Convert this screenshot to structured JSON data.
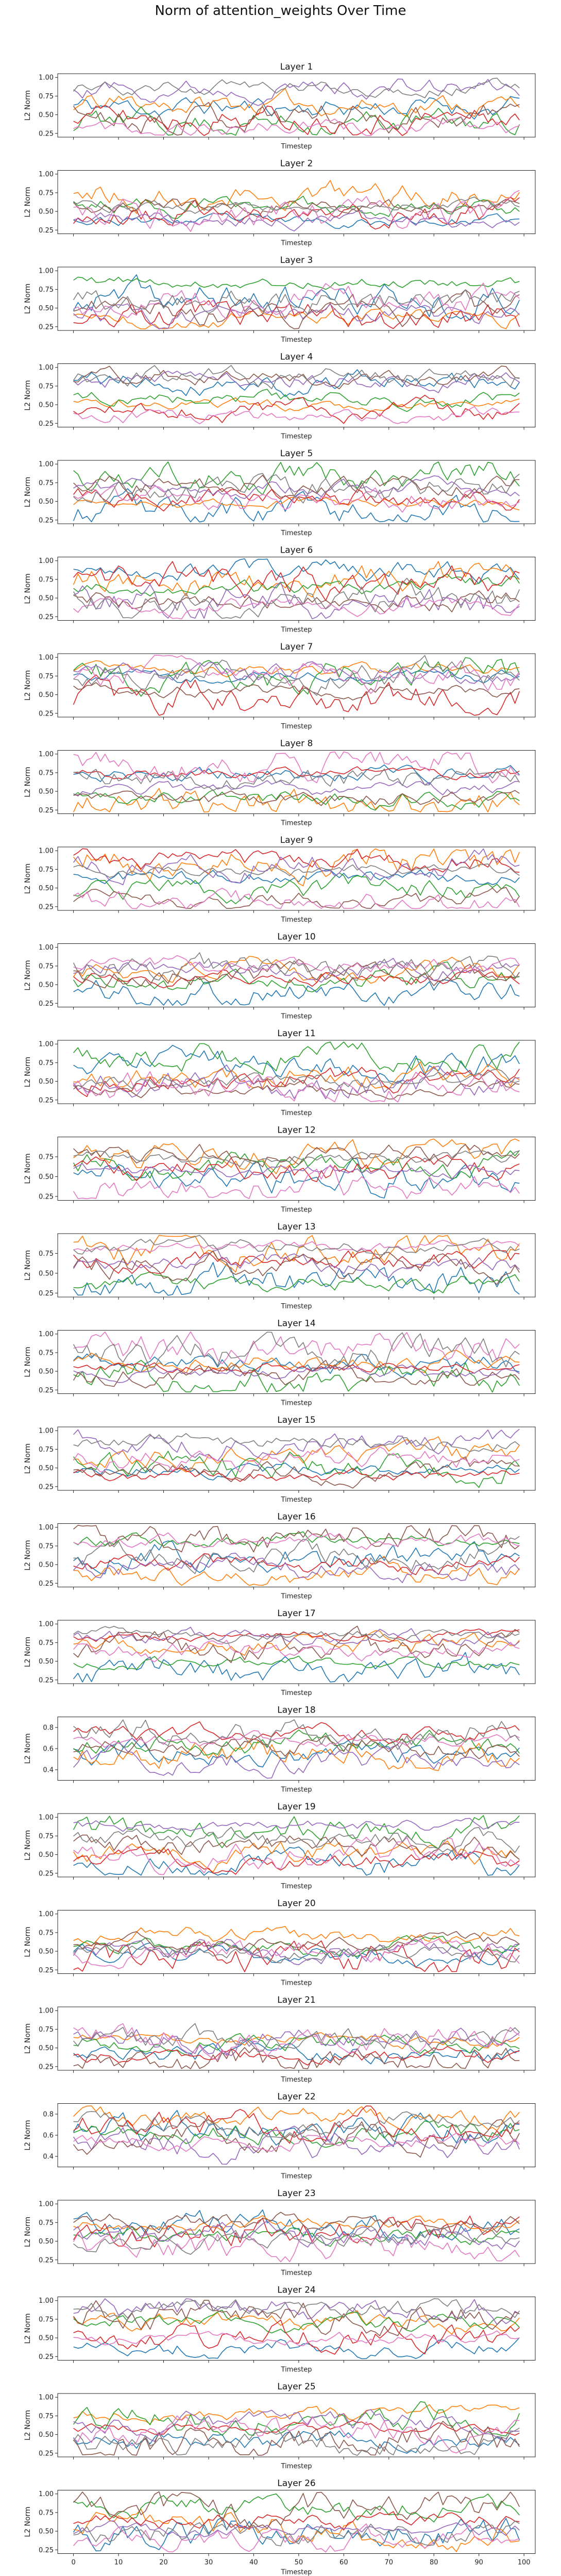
{
  "figure": {
    "suptitle": "Norm of attention_weights Over Time",
    "xlabel": "Timestep",
    "ylabel": "L2 Norm"
  },
  "chart_data": {
    "type": "line",
    "title": "Norm of attention_weights Over Time",
    "x": {
      "start": 0,
      "end": 99,
      "step": 1
    },
    "xlim": [
      -3.5,
      102.5
    ],
    "xticks": [
      0,
      10,
      20,
      30,
      40,
      50,
      60,
      70,
      80,
      90,
      100
    ],
    "series_colors": [
      "#1f77b4",
      "#ff7f0e",
      "#2ca02c",
      "#d62728",
      "#9467bd",
      "#8c564b",
      "#e377c2",
      "#7f7f7f"
    ],
    "grid": false,
    "legend": "none",
    "note_values": "each layer has 8 series of 100 values; y ranges approximated from the axes",
    "layers": [
      {
        "title": "Layer 1",
        "ylim": [
          0.2,
          1.05
        ],
        "yticks": [
          0.25,
          0.5,
          0.75,
          1.0
        ],
        "tick_labels": [
          "0.25",
          "0.50",
          "0.75",
          "1.00"
        ],
        "seed": 11
      },
      {
        "title": "Layer 2",
        "ylim": [
          0.2,
          1.05
        ],
        "yticks": [
          0.25,
          0.5,
          0.75,
          1.0
        ],
        "tick_labels": [
          "0.25",
          "0.50",
          "0.75",
          "1.00"
        ],
        "seed": 23
      },
      {
        "title": "Layer 3",
        "ylim": [
          0.2,
          1.05
        ],
        "yticks": [
          0.25,
          0.5,
          0.75,
          1.0
        ],
        "tick_labels": [
          "0.25",
          "0.50",
          "0.75",
          "1.00"
        ],
        "seed": 37
      },
      {
        "title": "Layer 4",
        "ylim": [
          0.2,
          1.05
        ],
        "yticks": [
          0.25,
          0.5,
          0.75,
          1.0
        ],
        "tick_labels": [
          "0.25",
          "0.50",
          "0.75",
          "1.00"
        ],
        "seed": 41
      },
      {
        "title": "Layer 5",
        "ylim": [
          0.2,
          1.05
        ],
        "yticks": [
          0.25,
          0.5,
          0.75,
          1.0
        ],
        "tick_labels": [
          "0.25",
          "0.50",
          "0.75",
          "1.00"
        ],
        "seed": 53
      },
      {
        "title": "Layer 6",
        "ylim": [
          0.2,
          1.05
        ],
        "yticks": [
          0.25,
          0.5,
          0.75,
          1.0
        ],
        "tick_labels": [
          "0.25",
          "0.50",
          "0.75",
          "1.00"
        ],
        "seed": 67
      },
      {
        "title": "Layer 7",
        "ylim": [
          0.2,
          1.05
        ],
        "yticks": [
          0.25,
          0.5,
          0.75,
          1.0
        ],
        "tick_labels": [
          "0.25",
          "0.50",
          "0.75",
          "1.00"
        ],
        "seed": 71
      },
      {
        "title": "Layer 8",
        "ylim": [
          0.2,
          1.05
        ],
        "yticks": [
          0.25,
          0.5,
          0.75,
          1.0
        ],
        "tick_labels": [
          "0.25",
          "0.50",
          "0.75",
          "1.00"
        ],
        "seed": 83
      },
      {
        "title": "Layer 9",
        "ylim": [
          0.2,
          1.05
        ],
        "yticks": [
          0.25,
          0.5,
          0.75,
          1.0
        ],
        "tick_labels": [
          "0.25",
          "0.50",
          "0.75",
          "1.00"
        ],
        "seed": 97
      },
      {
        "title": "Layer 10",
        "ylim": [
          0.2,
          1.05
        ],
        "yticks": [
          0.25,
          0.5,
          0.75,
          1.0
        ],
        "tick_labels": [
          "0.25",
          "0.50",
          "0.75",
          "1.00"
        ],
        "seed": 101
      },
      {
        "title": "Layer 11",
        "ylim": [
          0.2,
          1.05
        ],
        "yticks": [
          0.25,
          0.5,
          0.75,
          1.0
        ],
        "tick_labels": [
          "0.25",
          "0.50",
          "0.75",
          "1.00"
        ],
        "seed": 113
      },
      {
        "title": "Layer 12",
        "ylim": [
          0.2,
          1.0
        ],
        "yticks": [
          0.25,
          0.5,
          0.75
        ],
        "tick_labels": [
          "0.25",
          "0.50",
          "0.75"
        ],
        "seed": 127
      },
      {
        "title": "Layer 13",
        "ylim": [
          0.2,
          1.0
        ],
        "yticks": [
          0.25,
          0.5,
          0.75
        ],
        "tick_labels": [
          "0.25",
          "0.50",
          "0.75"
        ],
        "seed": 131
      },
      {
        "title": "Layer 14",
        "ylim": [
          0.2,
          1.05
        ],
        "yticks": [
          0.25,
          0.5,
          0.75,
          1.0
        ],
        "tick_labels": [
          "0.25",
          "0.50",
          "0.75",
          "1.00"
        ],
        "seed": 149
      },
      {
        "title": "Layer 15",
        "ylim": [
          0.2,
          1.05
        ],
        "yticks": [
          0.25,
          0.5,
          0.75,
          1.0
        ],
        "tick_labels": [
          "0.25",
          "0.50",
          "0.75",
          "1.00"
        ],
        "seed": 151
      },
      {
        "title": "Layer 16",
        "ylim": [
          0.2,
          1.05
        ],
        "yticks": [
          0.25,
          0.5,
          0.75,
          1.0
        ],
        "tick_labels": [
          "0.25",
          "0.50",
          "0.75",
          "1.00"
        ],
        "seed": 163
      },
      {
        "title": "Layer 17",
        "ylim": [
          0.2,
          1.05
        ],
        "yticks": [
          0.25,
          0.5,
          0.75,
          1.0
        ],
        "tick_labels": [
          "0.25",
          "0.50",
          "0.75",
          "1.00"
        ],
        "seed": 173
      },
      {
        "title": "Layer 18",
        "ylim": [
          0.3,
          0.9
        ],
        "yticks": [
          0.4,
          0.6,
          0.8
        ],
        "tick_labels": [
          "0.4",
          "0.6",
          "0.8"
        ],
        "seed": 181
      },
      {
        "title": "Layer 19",
        "ylim": [
          0.2,
          1.05
        ],
        "yticks": [
          0.25,
          0.5,
          0.75,
          1.0
        ],
        "tick_labels": [
          "0.25",
          "0.50",
          "0.75",
          "1.00"
        ],
        "seed": 191
      },
      {
        "title": "Layer 20",
        "ylim": [
          0.2,
          1.05
        ],
        "yticks": [
          0.25,
          0.5,
          0.75,
          1.0
        ],
        "tick_labels": [
          "0.25",
          "0.50",
          "0.75",
          "1.00"
        ],
        "seed": 197
      },
      {
        "title": "Layer 21",
        "ylim": [
          0.2,
          1.05
        ],
        "yticks": [
          0.25,
          0.5,
          0.75,
          1.0
        ],
        "tick_labels": [
          "0.25",
          "0.50",
          "0.75",
          "1.00"
        ],
        "seed": 211
      },
      {
        "title": "Layer 22",
        "ylim": [
          0.3,
          0.9
        ],
        "yticks": [
          0.4,
          0.6,
          0.8
        ],
        "tick_labels": [
          "0.4",
          "0.6",
          "0.8"
        ],
        "seed": 223
      },
      {
        "title": "Layer 23",
        "ylim": [
          0.2,
          1.05
        ],
        "yticks": [
          0.25,
          0.5,
          0.75,
          1.0
        ],
        "tick_labels": [
          "0.25",
          "0.50",
          "0.75",
          "1.00"
        ],
        "seed": 227
      },
      {
        "title": "Layer 24",
        "ylim": [
          0.2,
          1.05
        ],
        "yticks": [
          0.25,
          0.5,
          0.75,
          1.0
        ],
        "tick_labels": [
          "0.25",
          "0.50",
          "0.75",
          "1.00"
        ],
        "seed": 239
      },
      {
        "title": "Layer 25",
        "ylim": [
          0.2,
          1.05
        ],
        "yticks": [
          0.25,
          0.5,
          0.75,
          1.0
        ],
        "tick_labels": [
          "0.25",
          "0.50",
          "0.75",
          "1.00"
        ],
        "seed": 241
      },
      {
        "title": "Layer 26",
        "ylim": [
          0.2,
          1.05
        ],
        "yticks": [
          0.25,
          0.5,
          0.75,
          1.0
        ],
        "tick_labels": [
          "0.25",
          "0.50",
          "0.75",
          "1.00"
        ],
        "seed": 251
      }
    ]
  }
}
